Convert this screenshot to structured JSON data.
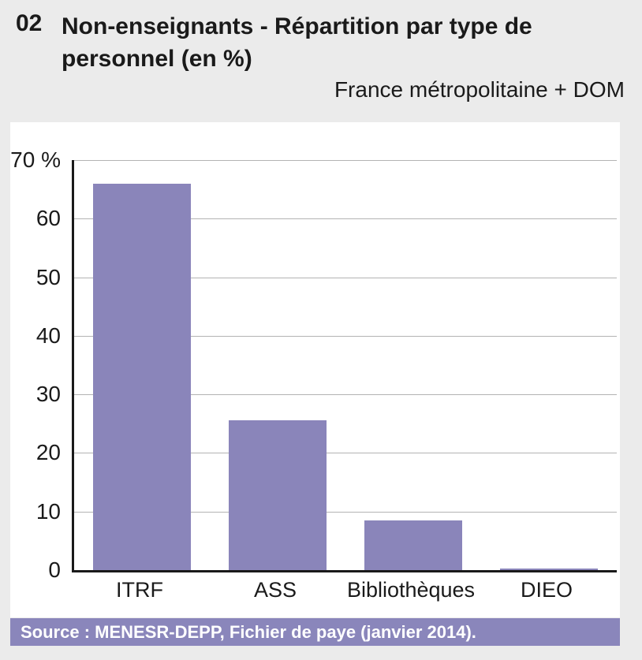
{
  "header": {
    "number": "02",
    "title_line1": "Non-enseignants - Répartition par type de",
    "title_line2": "personnel (en %)",
    "subtitle": "France métropolitaine + DOM"
  },
  "chart_data": {
    "type": "bar",
    "title": "Non-enseignants - Répartition par type de personnel (en %)",
    "subtitle": "France métropolitaine + DOM",
    "categories": [
      "ITRF",
      "ASS",
      "Bibliothèques",
      "DIEO"
    ],
    "values": [
      66,
      25.6,
      8.5,
      0.3
    ],
    "xlabel": "",
    "ylabel": "%",
    "ylim": [
      0,
      70
    ],
    "yticks": [
      0,
      10,
      20,
      30,
      40,
      50,
      60,
      70
    ],
    "ytick_labels": [
      "0",
      "10",
      "20",
      "30",
      "40",
      "50",
      "60",
      "70 %"
    ],
    "grid": true,
    "legend_position": "none",
    "bar_color": "#8a85ba"
  },
  "source": {
    "label": "Source : MENESR-DEPP, Fichier de paye (janvier 2014)."
  },
  "colors": {
    "page_bg": "#ebebeb",
    "panel_bg": "#ffffff",
    "bar": "#8a85ba",
    "grid": "#b3b3b3",
    "axis": "#1a1a1a",
    "text": "#1a1a1a",
    "strip_bg": "#8a86bb",
    "strip_text": "#ffffff"
  }
}
